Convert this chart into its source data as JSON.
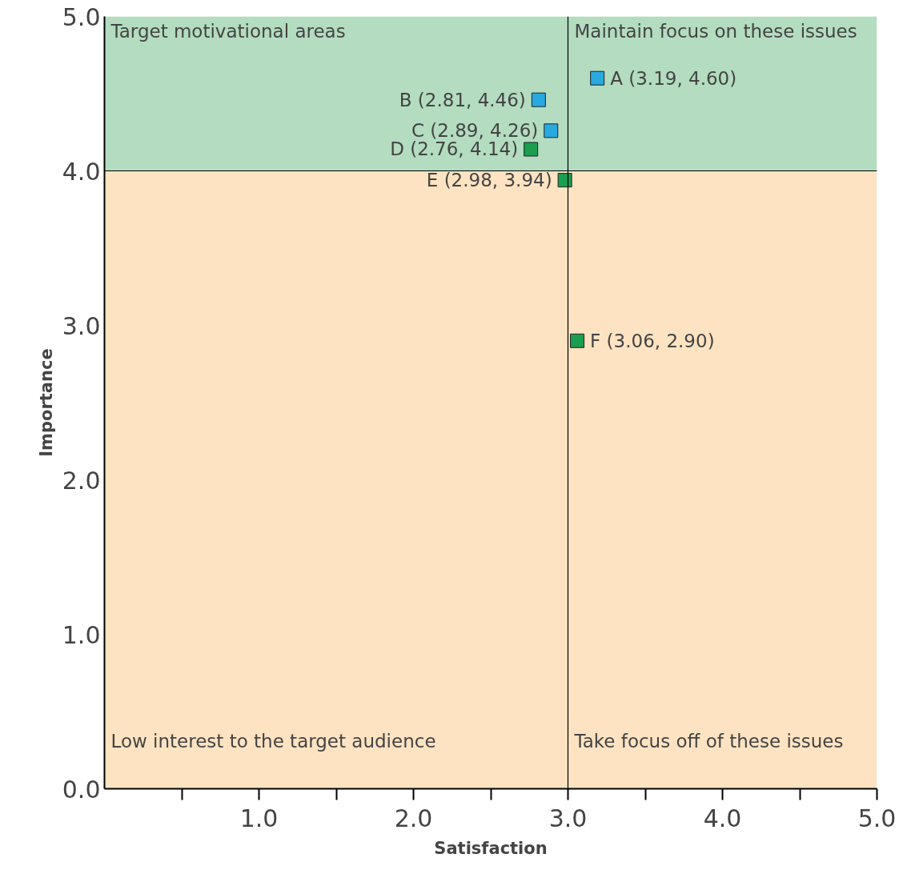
{
  "chart_data": {
    "type": "scatter",
    "xlabel": "Satisfaction",
    "ylabel": "Importance",
    "xlim": [
      0,
      5
    ],
    "ylim": [
      0,
      5
    ],
    "xticks": [
      {
        "value": 0.5,
        "label": null
      },
      {
        "value": 1.0,
        "label": "1.0"
      },
      {
        "value": 1.5,
        "label": null
      },
      {
        "value": 2.0,
        "label": "2.0"
      },
      {
        "value": 2.5,
        "label": null
      },
      {
        "value": 3.0,
        "label": "3.0"
      },
      {
        "value": 3.5,
        "label": null
      },
      {
        "value": 4.0,
        "label": "4.0"
      },
      {
        "value": 4.5,
        "label": null
      },
      {
        "value": 5.0,
        "label": "5.0"
      }
    ],
    "yticks": [
      {
        "value": 0,
        "label": "0.0"
      },
      {
        "value": 1,
        "label": "1.0"
      },
      {
        "value": 2,
        "label": "2.0"
      },
      {
        "value": 3,
        "label": "3.0"
      },
      {
        "value": 4,
        "label": "4.0"
      },
      {
        "value": 5,
        "label": "5.0"
      }
    ],
    "marker": "square",
    "bands": [
      {
        "axis": "y",
        "from": 4,
        "to": 5,
        "color": "#b3dcc0"
      },
      {
        "axis": "y",
        "from": 0,
        "to": 4,
        "color": "#fde3c2"
      }
    ],
    "ref_lines": [
      {
        "axis": "x",
        "value": 3.0,
        "color": "#000000"
      },
      {
        "axis": "y",
        "value": 4.0,
        "color": "#000000"
      }
    ],
    "series": [
      {
        "color": "#29a9e0",
        "x": [
          3.19,
          2.81,
          2.89
        ],
        "values": [
          4.6,
          4.46,
          4.26
        ],
        "value_labels": [
          "A (3.19, 4.60)",
          "B (2.81, 4.46)",
          "C (2.89, 4.26)"
        ]
      },
      {
        "color": "#1a9e50",
        "x": [
          2.76,
          2.98,
          3.06
        ],
        "values": [
          4.14,
          3.94,
          2.9
        ],
        "value_labels": [
          "D (2.76, 4.14)",
          "E (2.98, 3.94)",
          "F (3.06, 2.90)"
        ]
      }
    ],
    "annotations": [
      "Target motivational areas",
      "Maintain focus on these issues",
      "Low interest to the target audience",
      "Take focus off of these issues"
    ]
  }
}
